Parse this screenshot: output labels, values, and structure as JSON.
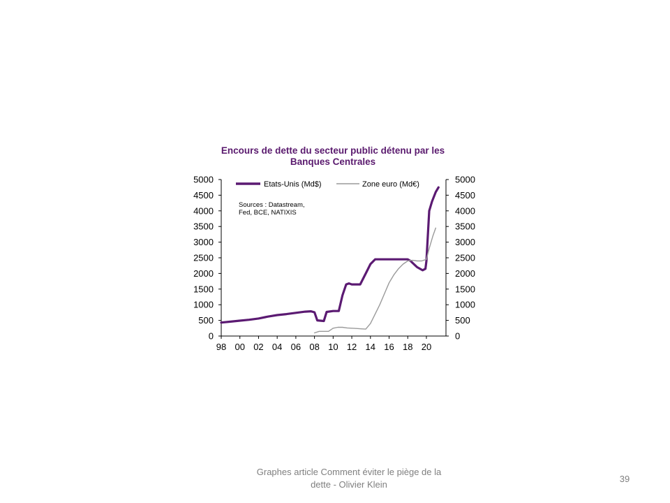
{
  "footer": {
    "caption_line1": "Graphes article Comment  éviter le piège de la",
    "caption_line2": "dette - Olivier Klein",
    "slide_number": "39"
  },
  "chart_data": {
    "type": "line",
    "title_lines": [
      "Encours de dette du secteur public détenu par les",
      "Banques Centrales"
    ],
    "note_lines": [
      "Sources  : Datastream,",
      "Fed, BCE, NATIXIS"
    ],
    "x_tick_labels": [
      "98",
      "00",
      "02",
      "04",
      "06",
      "08",
      "10",
      "12",
      "14",
      "16",
      "18",
      "20"
    ],
    "xlim": [
      1998,
      2021.5
    ],
    "y_left": {
      "ylim": [
        0,
        5000
      ],
      "ticks": [
        0,
        500,
        1000,
        1500,
        2000,
        2500,
        3000,
        3500,
        4000,
        4500,
        5000
      ]
    },
    "y_right": {
      "ylim": [
        0,
        5000
      ],
      "ticks": [
        0,
        500,
        1000,
        1500,
        2000,
        2500,
        3000,
        3500,
        4000,
        4500,
        5000
      ]
    },
    "legend_position": "top",
    "series": [
      {
        "name": "Etats-Unis (Md$)",
        "axis": "left",
        "color": "#5b1a72",
        "points": [
          [
            1998.0,
            430
          ],
          [
            1999.0,
            460
          ],
          [
            2000.0,
            490
          ],
          [
            2001.0,
            520
          ],
          [
            2002.0,
            560
          ],
          [
            2003.0,
            620
          ],
          [
            2004.0,
            670
          ],
          [
            2005.0,
            700
          ],
          [
            2006.0,
            740
          ],
          [
            2007.0,
            780
          ],
          [
            2007.6,
            790
          ],
          [
            2008.0,
            760
          ],
          [
            2008.3,
            500
          ],
          [
            2009.0,
            480
          ],
          [
            2009.3,
            770
          ],
          [
            2010.0,
            800
          ],
          [
            2010.6,
            800
          ],
          [
            2011.0,
            1300
          ],
          [
            2011.4,
            1650
          ],
          [
            2011.7,
            1680
          ],
          [
            2012.0,
            1650
          ],
          [
            2012.9,
            1650
          ],
          [
            2013.5,
            2000
          ],
          [
            2014.0,
            2300
          ],
          [
            2014.5,
            2450
          ],
          [
            2015.0,
            2450
          ],
          [
            2016.0,
            2450
          ],
          [
            2017.0,
            2450
          ],
          [
            2018.0,
            2450
          ],
          [
            2018.3,
            2400
          ],
          [
            2019.0,
            2200
          ],
          [
            2019.6,
            2100
          ],
          [
            2019.9,
            2150
          ],
          [
            2020.0,
            2400
          ],
          [
            2020.15,
            3200
          ],
          [
            2020.3,
            4000
          ],
          [
            2020.6,
            4300
          ],
          [
            2021.0,
            4600
          ],
          [
            2021.3,
            4750
          ]
        ]
      },
      {
        "name": "Zone euro (Md€)",
        "axis": "right",
        "color": "#9a9a9a",
        "points": [
          [
            2008.0,
            100
          ],
          [
            2008.5,
            150
          ],
          [
            2009.5,
            150
          ],
          [
            2010.0,
            250
          ],
          [
            2010.5,
            280
          ],
          [
            2011.0,
            280
          ],
          [
            2011.5,
            260
          ],
          [
            2012.0,
            250
          ],
          [
            2012.5,
            240
          ],
          [
            2013.0,
            230
          ],
          [
            2013.5,
            220
          ],
          [
            2014.0,
            400
          ],
          [
            2014.5,
            700
          ],
          [
            2015.0,
            1000
          ],
          [
            2015.5,
            1350
          ],
          [
            2016.0,
            1700
          ],
          [
            2016.5,
            1950
          ],
          [
            2017.0,
            2150
          ],
          [
            2017.5,
            2300
          ],
          [
            2018.0,
            2400
          ],
          [
            2018.5,
            2420
          ],
          [
            2019.0,
            2400
          ],
          [
            2019.5,
            2400
          ],
          [
            2020.0,
            2450
          ],
          [
            2020.3,
            2800
          ],
          [
            2020.7,
            3200
          ],
          [
            2021.0,
            3450
          ]
        ]
      }
    ]
  }
}
